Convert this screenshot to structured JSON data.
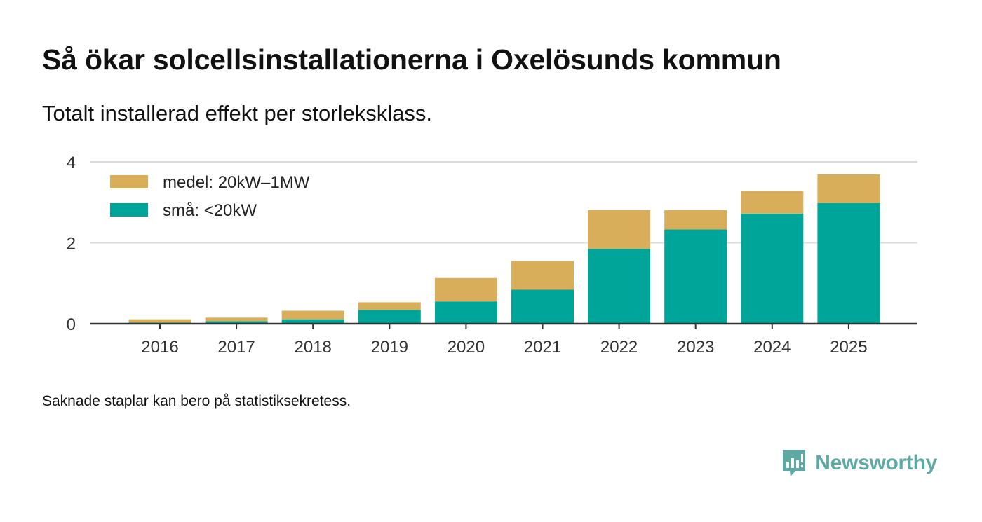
{
  "title": "Så ökar solcellsinstallationerna i Oxelösunds kommun",
  "subtitle": "Totalt installerad effekt per storleksklass.",
  "footnote": "Saknade staplar kan bero på statistiksekretess.",
  "brand": {
    "name": "Newsworthy",
    "color": "#5fa9a5",
    "icon": "newsworthy-logo-icon"
  },
  "colors": {
    "medel": "#d9ae5b",
    "sma": "#00a59a",
    "grid": "#dddddd",
    "axis": "#333333"
  },
  "chart_data": {
    "type": "bar",
    "stacked": true,
    "categories": [
      "2016",
      "2017",
      "2018",
      "2019",
      "2020",
      "2021",
      "2022",
      "2023",
      "2024",
      "2025"
    ],
    "series": [
      {
        "key": "sma",
        "name": "små: <20kW",
        "values": [
          0.03,
          0.06,
          0.11,
          0.34,
          0.55,
          0.84,
          1.85,
          2.33,
          2.72,
          2.98
        ]
      },
      {
        "key": "medel",
        "name": "medel: 20kW–1MW",
        "values": [
          0.08,
          0.09,
          0.21,
          0.19,
          0.58,
          0.71,
          0.96,
          0.48,
          0.56,
          0.71
        ]
      }
    ],
    "legend_order": [
      "medel",
      "sma"
    ],
    "legend": "top-left",
    "y_ticks": [
      "0",
      "2",
      "4"
    ],
    "ylim": [
      0,
      4
    ],
    "grid": true,
    "xlabel": "",
    "ylabel": ""
  }
}
